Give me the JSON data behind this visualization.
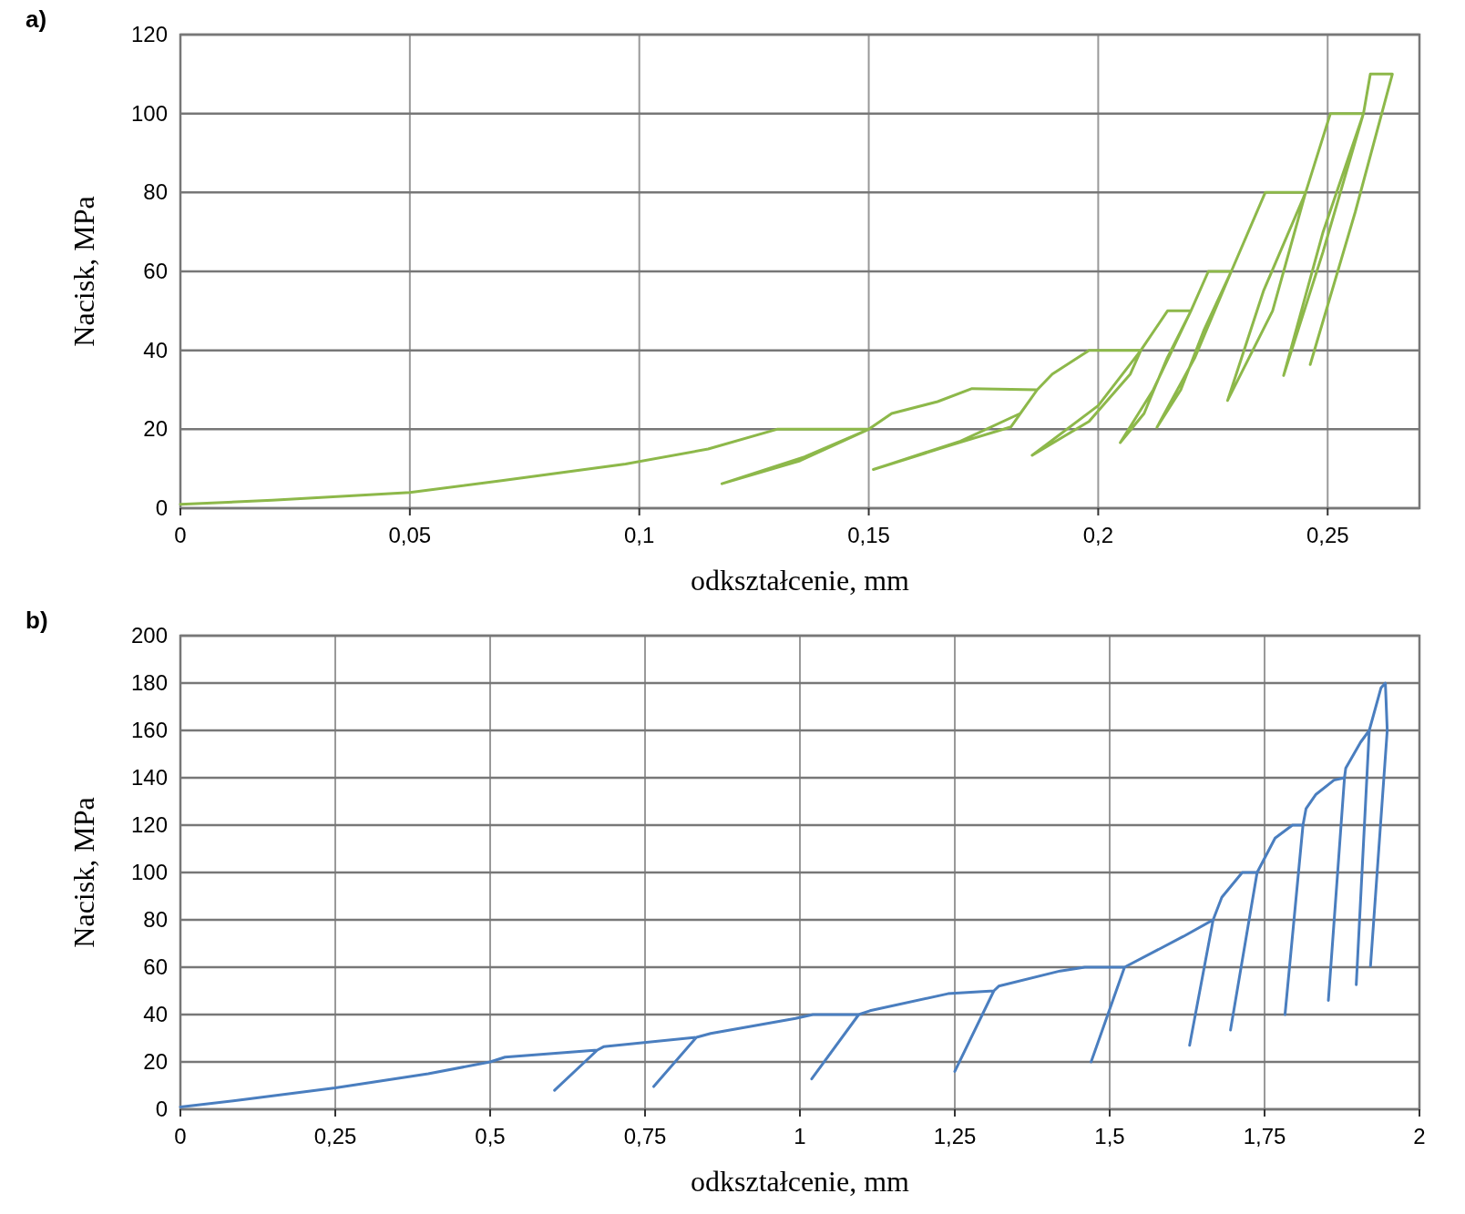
{
  "chart_data": [
    {
      "type": "line",
      "title": "a)",
      "xlabel": "odkształcenie, mm",
      "ylabel": "Nacisk, MPa",
      "xlim": [
        0,
        0.27
      ],
      "ylim": [
        0,
        120
      ],
      "xticks": [
        0,
        {
          "value": 0.05,
          "label": "0,05"
        },
        {
          "value": 0.1,
          "label": "0,1"
        },
        {
          "value": 0.15,
          "label": "0,15"
        },
        {
          "value": 0.2,
          "label": "0,2"
        },
        {
          "value": 0.25,
          "label": "0,25"
        }
      ],
      "yticks": [
        0,
        20,
        40,
        60,
        80,
        100,
        120
      ],
      "grid": true,
      "series": [
        {
          "color": "#8db84a",
          "x": [
            0,
            0.02,
            0.05,
            0.07,
            0.097,
            0.115,
            0.13,
            0.15,
            0.135,
            0.118,
            0.136,
            0.15,
            0.155,
            0.165,
            0.1725,
            0.1867,
            0.183,
            0.17,
            0.151,
            0.168,
            0.181,
            0.1867,
            0.19,
            0.198,
            0.2093,
            0.2,
            0.1856,
            0.198,
            0.207,
            0.2093,
            0.2151,
            0.2202,
            0.212,
            0.2048,
            0.21,
            0.215,
            0.2202,
            0.224,
            0.229,
            0.221,
            0.2128,
            0.218,
            0.223,
            0.229,
            0.2364,
            0.2452,
            0.236,
            0.2282,
            0.238,
            0.2452,
            0.2506,
            0.2578,
            0.249,
            0.2404,
            0.249,
            0.2578,
            0.2593,
            0.2641,
            0.256,
            0.2462
          ],
          "values": [
            1,
            2,
            4,
            7,
            11.2,
            15,
            20,
            20,
            12,
            6.2,
            13,
            20,
            24,
            27,
            30.3,
            30,
            24,
            17,
            9.8,
            16,
            20.6,
            30,
            34,
            40,
            40,
            26,
            13.4,
            22,
            34,
            40,
            50,
            50,
            30,
            16.6,
            24,
            38,
            50,
            60,
            60,
            38,
            20.5,
            30,
            45,
            60,
            80,
            80,
            55,
            27.3,
            50,
            80,
            100,
            100,
            70,
            33.6,
            65,
            100,
            110,
            110,
            75,
            36.4
          ]
        }
      ]
    },
    {
      "type": "line",
      "title": "b)",
      "xlabel": "odkształcenie, mm",
      "ylabel": "Nacisk, MPa",
      "xlim": [
        0,
        2
      ],
      "ylim": [
        0,
        200
      ],
      "xticks": [
        0,
        {
          "value": 0.25,
          "label": "0,25"
        },
        {
          "value": 0.5,
          "label": "0,5"
        },
        {
          "value": 0.75,
          "label": "0,75"
        },
        1,
        {
          "value": 1.25,
          "label": "1,25"
        },
        {
          "value": 1.5,
          "label": "1,5"
        },
        {
          "value": 1.75,
          "label": "1,75"
        },
        2
      ],
      "yticks": [
        0,
        20,
        40,
        60,
        80,
        100,
        120,
        140,
        160,
        180,
        200
      ],
      "grid": true,
      "series": [
        {
          "color": "#4a7ebf",
          "x": [
            0,
            0.1,
            0.25,
            0.4,
            0.5,
            0.524,
            0.673,
            0.604,
            0.673,
            0.683,
            0.833,
            0.764,
            0.833,
            0.856,
            0.993,
            1.021,
            1.095,
            1.019,
            1.095,
            1.113,
            1.239,
            1.313,
            1.25,
            1.313,
            1.321,
            1.42,
            1.46,
            1.524,
            1.47,
            1.524,
            1.619,
            1.667,
            1.629,
            1.667,
            1.681,
            1.714,
            1.738,
            1.695,
            1.738,
            1.767,
            1.795,
            1.812,
            1.783,
            1.812,
            1.817,
            1.833,
            1.862,
            1.879,
            1.853,
            1.879,
            1.881,
            1.905,
            1.919,
            1.898,
            1.919,
            1.938,
            1.945,
            1.948,
            1.921
          ],
          "values": [
            1,
            4,
            9,
            15,
            20,
            22,
            25,
            8,
            25,
            26.4,
            30.4,
            9.6,
            30.4,
            32,
            38.4,
            40,
            40,
            12.8,
            40,
            41.6,
            48.8,
            50,
            16,
            50,
            52,
            58.4,
            60,
            60,
            20,
            60,
            73,
            80,
            27,
            80,
            89.5,
            100,
            100,
            33.5,
            100,
            114.5,
            120,
            120,
            40,
            120,
            127,
            133,
            139,
            140,
            46,
            140,
            144,
            155,
            160,
            52.6,
            160,
            178,
            180,
            160,
            60.5
          ]
        }
      ]
    }
  ]
}
